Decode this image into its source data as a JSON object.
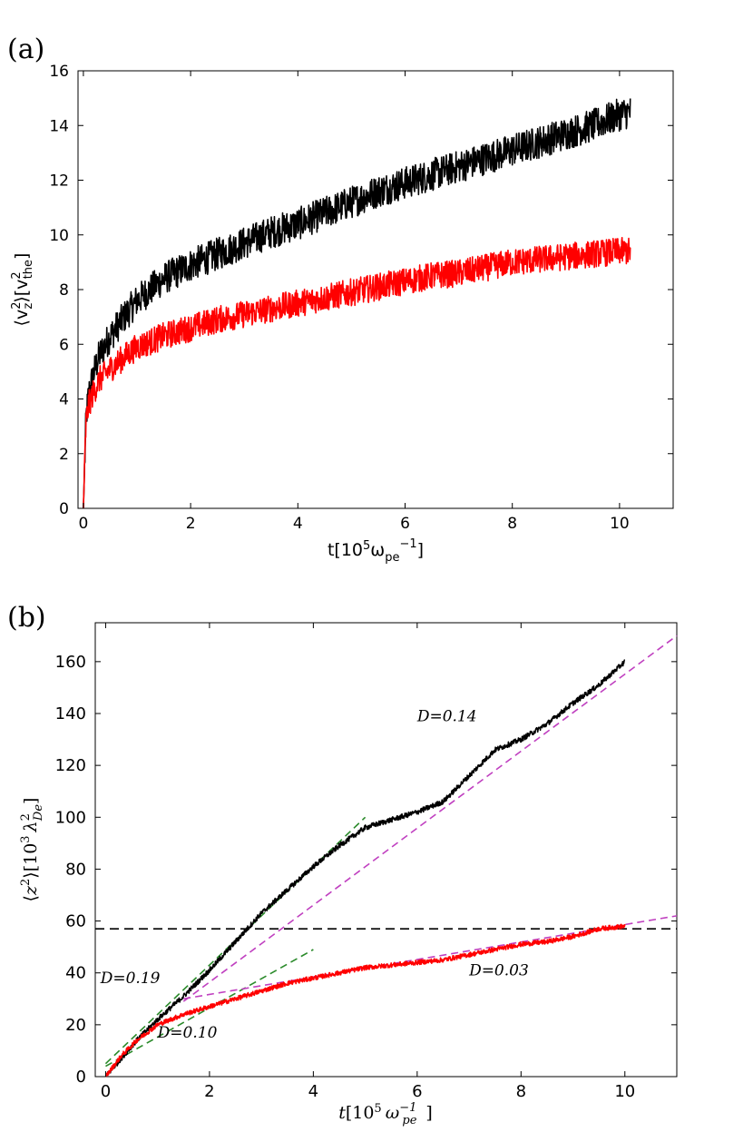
{
  "figure": {
    "panel_a_label": "(a)",
    "panel_b_label": "(b)"
  },
  "chart_data": [
    {
      "type": "line",
      "panel": "(a)",
      "title": "",
      "xlabel": "t[10⁵ω_pe⁻¹]",
      "ylabel": "⟨v_z²⟩[v_the²]",
      "xlim": [
        -0.1,
        11
      ],
      "ylim": [
        0,
        16
      ],
      "xticks": [
        0,
        2,
        4,
        6,
        8,
        10
      ],
      "yticks": [
        0,
        2,
        4,
        6,
        8,
        10,
        12,
        14,
        16
      ],
      "grid": false,
      "series": [
        {
          "name": "black",
          "color": "#000000",
          "noise": 0.6,
          "x": [
            0,
            0.05,
            0.1,
            0.2,
            0.3,
            0.5,
            0.8,
            1,
            1.5,
            2,
            2.5,
            3,
            3.5,
            4,
            4.5,
            5,
            5.5,
            6,
            6.5,
            7,
            7.5,
            8,
            8.5,
            9,
            9.5,
            10,
            10.2
          ],
          "y": [
            0,
            3.3,
            4.2,
            5.0,
            5.6,
            6.3,
            7.1,
            7.6,
            8.4,
            8.9,
            9.3,
            9.7,
            10.1,
            10.4,
            10.8,
            11.2,
            11.6,
            11.9,
            12.2,
            12.5,
            12.8,
            13.1,
            13.4,
            13.7,
            14.0,
            14.4,
            14.5
          ]
        },
        {
          "name": "red",
          "color": "#ff0000",
          "noise": 0.5,
          "x": [
            0,
            0.05,
            0.1,
            0.2,
            0.3,
            0.5,
            0.8,
            1,
            1.5,
            2,
            2.5,
            3,
            3.5,
            4,
            4.5,
            5,
            5.5,
            6,
            6.5,
            7,
            7.5,
            8,
            8.5,
            9,
            9.5,
            10,
            10.2
          ],
          "y": [
            0,
            3.2,
            3.8,
            4.3,
            4.7,
            5.1,
            5.6,
            5.9,
            6.3,
            6.6,
            6.9,
            7.1,
            7.3,
            7.5,
            7.7,
            7.9,
            8.1,
            8.3,
            8.5,
            8.6,
            8.8,
            9.0,
            9.1,
            9.2,
            9.3,
            9.4,
            9.4
          ]
        }
      ]
    },
    {
      "type": "line",
      "panel": "(b)",
      "title": "",
      "xlabel": "t[10⁵ ω_pe⁻¹]",
      "ylabel": "⟨z²⟩[10³ λ_De²]",
      "xlim": [
        -0.2,
        11
      ],
      "ylim": [
        0,
        175
      ],
      "xticks": [
        0,
        2,
        4,
        6,
        8,
        10
      ],
      "yticks": [
        0,
        20,
        40,
        60,
        80,
        100,
        120,
        140,
        160
      ],
      "grid": false,
      "series": [
        {
          "name": "black",
          "color": "#000000",
          "noise": 1.0,
          "x": [
            0,
            0.3,
            0.6,
            1,
            1.5,
            2,
            2.5,
            3,
            3.5,
            4,
            4.5,
            5,
            5.5,
            6,
            6.5,
            7,
            7.5,
            8,
            8.5,
            9,
            9.5,
            10
          ],
          "y": [
            0,
            7,
            14,
            22,
            31,
            41,
            52,
            63,
            72,
            81,
            89,
            96,
            99,
            102,
            106,
            116,
            126,
            130,
            136,
            144,
            151,
            160
          ]
        },
        {
          "name": "red",
          "color": "#ff0000",
          "noise": 0.9,
          "x": [
            0,
            0.3,
            0.6,
            1,
            1.5,
            2,
            2.5,
            3,
            3.5,
            4,
            4.5,
            5,
            5.5,
            6,
            6.5,
            7,
            7.5,
            8,
            8.5,
            9,
            9.5,
            10
          ],
          "y": [
            0,
            8,
            14,
            20,
            24,
            27,
            30,
            33,
            36,
            38,
            40,
            42,
            43,
            44,
            45,
            47,
            49,
            51,
            52,
            54,
            57,
            58
          ]
        }
      ],
      "fits": [
        {
          "label": "D=0.14",
          "slope": 0.14,
          "color": "#c040c0",
          "x": [
            1.5,
            11
          ],
          "y": [
            29,
            170
          ]
        },
        {
          "label": "D=0.19",
          "slope": 0.19,
          "color": "#2a8a2a",
          "x": [
            0,
            5
          ],
          "y": [
            5,
            100
          ]
        },
        {
          "label": "D=0.10",
          "slope": 0.1,
          "color": "#2a8a2a",
          "x": [
            0,
            4
          ],
          "y": [
            4,
            49
          ]
        },
        {
          "label": "D=0.03",
          "slope": 0.03,
          "color": "#c040c0",
          "x": [
            1.5,
            11
          ],
          "y": [
            30,
            62
          ]
        }
      ],
      "hline": {
        "y": 57,
        "color": "#000000",
        "style": "dashed"
      },
      "annotations": [
        {
          "text": "D=0.14",
          "x": 6.0,
          "y": 137
        },
        {
          "text": "D=0.19",
          "x": -0.1,
          "y": 36
        },
        {
          "text": "D=0.10",
          "x": 1.0,
          "y": 15
        },
        {
          "text": "D=0.03",
          "x": 7.0,
          "y": 39
        }
      ]
    }
  ]
}
